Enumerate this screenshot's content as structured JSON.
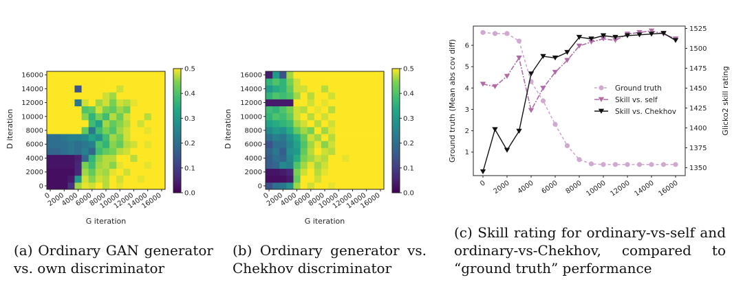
{
  "chart_data": [
    {
      "type": "heatmap",
      "xlabel": "G iteration",
      "ylabel": "D iteration",
      "x_ticks": [
        "0",
        "2000",
        "4000",
        "6000",
        "8000",
        "10000",
        "12000",
        "14000",
        "16000"
      ],
      "y_ticks": [
        "0",
        "2000",
        "4000",
        "6000",
        "8000",
        "10000",
        "12000",
        "14000",
        "16000"
      ],
      "colorbar_ticks": [
        "0.0",
        "0.1",
        "0.2",
        "0.3",
        "0.4",
        "0.5"
      ],
      "vmin": 0.0,
      "vmax": 0.5,
      "colormap": "viridis",
      "grid_step": 1000,
      "rows": [
        [
          0.02,
          0.02,
          0.02,
          0.08,
          0.46,
          0.49,
          0.48,
          0.5,
          0.47,
          0.5,
          0.49,
          0.5,
          0.5,
          0.5,
          0.5,
          0.5,
          0.5
        ],
        [
          0.02,
          0.02,
          0.02,
          0.04,
          0.3,
          0.48,
          0.45,
          0.48,
          0.47,
          0.5,
          0.48,
          0.5,
          0.5,
          0.49,
          0.5,
          0.5,
          0.5
        ],
        [
          0.02,
          0.02,
          0.02,
          0.02,
          0.06,
          0.46,
          0.42,
          0.47,
          0.46,
          0.49,
          0.5,
          0.48,
          0.5,
          0.5,
          0.5,
          0.5,
          0.5
        ],
        [
          0.03,
          0.03,
          0.03,
          0.03,
          0.06,
          0.44,
          0.38,
          0.46,
          0.47,
          0.45,
          0.49,
          0.5,
          0.5,
          0.5,
          0.49,
          0.5,
          0.5
        ],
        [
          0.03,
          0.03,
          0.03,
          0.03,
          0.05,
          0.18,
          0.36,
          0.45,
          0.47,
          0.47,
          0.5,
          0.5,
          0.47,
          0.5,
          0.5,
          0.5,
          0.5
        ],
        [
          0.18,
          0.18,
          0.2,
          0.22,
          0.2,
          0.24,
          0.18,
          0.38,
          0.42,
          0.44,
          0.47,
          0.48,
          0.5,
          0.5,
          0.5,
          0.5,
          0.5
        ],
        [
          0.2,
          0.2,
          0.2,
          0.22,
          0.2,
          0.22,
          0.24,
          0.4,
          0.36,
          0.45,
          0.42,
          0.47,
          0.48,
          0.5,
          0.49,
          0.5,
          0.5
        ],
        [
          0.2,
          0.2,
          0.22,
          0.24,
          0.24,
          0.26,
          0.32,
          0.28,
          0.38,
          0.46,
          0.44,
          0.48,
          0.5,
          0.5,
          0.5,
          0.5,
          0.5
        ],
        [
          0.5,
          0.5,
          0.5,
          0.5,
          0.5,
          0.42,
          0.22,
          0.38,
          0.44,
          0.4,
          0.46,
          0.48,
          0.5,
          0.5,
          0.49,
          0.5,
          0.5
        ],
        [
          0.5,
          0.5,
          0.5,
          0.5,
          0.5,
          0.5,
          0.38,
          0.32,
          0.46,
          0.42,
          0.45,
          0.47,
          0.5,
          0.48,
          0.5,
          0.5,
          0.5
        ],
        [
          0.5,
          0.5,
          0.5,
          0.5,
          0.5,
          0.45,
          0.36,
          0.44,
          0.38,
          0.47,
          0.43,
          0.48,
          0.5,
          0.5,
          0.47,
          0.5,
          0.5
        ],
        [
          0.5,
          0.5,
          0.5,
          0.5,
          0.5,
          0.4,
          0.42,
          0.48,
          0.44,
          0.42,
          0.46,
          0.44,
          0.5,
          0.5,
          0.5,
          0.5,
          0.5
        ],
        [
          0.5,
          0.5,
          0.5,
          0.5,
          0.22,
          0.48,
          0.5,
          0.46,
          0.48,
          0.44,
          0.48,
          0.47,
          0.49,
          0.5,
          0.5,
          0.5,
          0.5
        ],
        [
          0.5,
          0.5,
          0.5,
          0.5,
          0.5,
          0.5,
          0.5,
          0.5,
          0.48,
          0.46,
          0.5,
          0.5,
          0.5,
          0.5,
          0.5,
          0.5,
          0.5
        ],
        [
          0.5,
          0.5,
          0.5,
          0.5,
          0.14,
          0.5,
          0.5,
          0.5,
          0.5,
          0.5,
          0.48,
          0.5,
          0.5,
          0.5,
          0.5,
          0.5,
          0.5
        ],
        [
          0.5,
          0.5,
          0.5,
          0.5,
          0.5,
          0.5,
          0.5,
          0.5,
          0.5,
          0.5,
          0.5,
          0.5,
          0.5,
          0.5,
          0.5,
          0.5,
          0.5
        ],
        [
          0.5,
          0.5,
          0.5,
          0.5,
          0.5,
          0.5,
          0.5,
          0.5,
          0.5,
          0.5,
          0.5,
          0.5,
          0.5,
          0.5,
          0.5,
          0.5,
          0.5
        ]
      ],
      "caption": "(a) Ordinary GAN generator vs. own discriminator"
    },
    {
      "type": "heatmap",
      "xlabel": "G iteration",
      "ylabel": "D iteration",
      "x_ticks": [
        "0",
        "2000",
        "4000",
        "6000",
        "8000",
        "10000",
        "12000",
        "14000",
        "16000"
      ],
      "y_ticks": [
        "0",
        "2000",
        "4000",
        "6000",
        "8000",
        "10000",
        "12000",
        "14000",
        "16000"
      ],
      "colorbar_ticks": [
        "0.0",
        "0.1",
        "0.2",
        "0.3",
        "0.4",
        "0.5"
      ],
      "vmin": 0.0,
      "vmax": 0.5,
      "colormap": "viridis",
      "grid_step": 1000,
      "rows": [
        [
          0.14,
          0.2,
          0.22,
          0.28,
          0.46,
          0.5,
          0.48,
          0.5,
          0.5,
          0.49,
          0.5,
          0.5,
          0.5,
          0.5,
          0.5,
          0.5,
          0.5
        ],
        [
          0.02,
          0.02,
          0.02,
          0.04,
          0.42,
          0.5,
          0.5,
          0.48,
          0.5,
          0.5,
          0.5,
          0.5,
          0.5,
          0.5,
          0.5,
          0.5,
          0.5
        ],
        [
          0.03,
          0.03,
          0.04,
          0.06,
          0.44,
          0.48,
          0.5,
          0.47,
          0.49,
          0.5,
          0.5,
          0.5,
          0.5,
          0.5,
          0.5,
          0.5,
          0.5
        ],
        [
          0.16,
          0.18,
          0.26,
          0.24,
          0.4,
          0.46,
          0.49,
          0.46,
          0.48,
          0.5,
          0.5,
          0.5,
          0.5,
          0.5,
          0.5,
          0.5,
          0.5
        ],
        [
          0.16,
          0.2,
          0.18,
          0.26,
          0.34,
          0.44,
          0.46,
          0.48,
          0.47,
          0.5,
          0.5,
          0.49,
          0.5,
          0.5,
          0.5,
          0.5,
          0.5
        ],
        [
          0.18,
          0.22,
          0.16,
          0.28,
          0.3,
          0.42,
          0.47,
          0.5,
          0.48,
          0.47,
          0.5,
          0.5,
          0.5,
          0.5,
          0.5,
          0.5,
          0.5
        ],
        [
          0.14,
          0.2,
          0.2,
          0.26,
          0.32,
          0.4,
          0.46,
          0.49,
          0.45,
          0.48,
          0.5,
          0.5,
          0.5,
          0.5,
          0.5,
          0.5,
          0.5
        ],
        [
          0.2,
          0.24,
          0.22,
          0.28,
          0.34,
          0.42,
          0.48,
          0.46,
          0.5,
          0.47,
          0.5,
          0.5,
          0.5,
          0.5,
          0.5,
          0.5,
          0.5
        ],
        [
          0.26,
          0.3,
          0.28,
          0.34,
          0.42,
          0.46,
          0.44,
          0.5,
          0.46,
          0.49,
          0.5,
          0.5,
          0.5,
          0.5,
          0.5,
          0.5,
          0.5
        ],
        [
          0.32,
          0.34,
          0.36,
          0.38,
          0.46,
          0.48,
          0.5,
          0.47,
          0.5,
          0.48,
          0.5,
          0.5,
          0.5,
          0.5,
          0.5,
          0.5,
          0.5
        ],
        [
          0.36,
          0.4,
          0.38,
          0.42,
          0.48,
          0.5,
          0.47,
          0.5,
          0.48,
          0.5,
          0.5,
          0.5,
          0.5,
          0.5,
          0.5,
          0.5,
          0.5
        ],
        [
          0.38,
          0.36,
          0.4,
          0.44,
          0.48,
          0.47,
          0.5,
          0.49,
          0.5,
          0.47,
          0.5,
          0.5,
          0.5,
          0.5,
          0.5,
          0.5,
          0.5
        ],
        [
          0.04,
          0.04,
          0.04,
          0.04,
          0.5,
          0.5,
          0.48,
          0.5,
          0.49,
          0.5,
          0.5,
          0.5,
          0.5,
          0.5,
          0.5,
          0.5,
          0.5
        ],
        [
          0.36,
          0.4,
          0.38,
          0.4,
          0.46,
          0.5,
          0.47,
          0.5,
          0.5,
          0.48,
          0.5,
          0.5,
          0.5,
          0.5,
          0.5,
          0.5,
          0.5
        ],
        [
          0.3,
          0.34,
          0.36,
          0.42,
          0.48,
          0.48,
          0.5,
          0.5,
          0.47,
          0.5,
          0.5,
          0.5,
          0.5,
          0.5,
          0.5,
          0.5,
          0.5
        ],
        [
          0.36,
          0.4,
          0.36,
          0.44,
          0.48,
          0.5,
          0.5,
          0.5,
          0.5,
          0.5,
          0.5,
          0.5,
          0.5,
          0.5,
          0.5,
          0.5,
          0.5
        ],
        [
          0.04,
          0.3,
          0.14,
          0.46,
          0.5,
          0.5,
          0.5,
          0.5,
          0.5,
          0.5,
          0.5,
          0.5,
          0.5,
          0.5,
          0.5,
          0.5,
          0.5
        ]
      ],
      "caption": "(b) Ordinary generator vs. Chekhov discriminator"
    },
    {
      "type": "line",
      "xlabel": "",
      "ylabel": "Ground truth (Mean abs cov diff)",
      "y2label": "Glicko2 skill rating",
      "x_ticks": [
        "0",
        "2000",
        "4000",
        "6000",
        "8000",
        "10000",
        "12000",
        "14000",
        "16000"
      ],
      "y_ticks": [
        "1",
        "2",
        "3",
        "4",
        "5",
        "6"
      ],
      "y2_ticks": [
        "1350",
        "1375",
        "1400",
        "1425",
        "1450",
        "1475",
        "1500",
        "1525"
      ],
      "xlim": [
        -800,
        16800
      ],
      "ylim": [
        -0.1,
        6.9
      ],
      "y2lim": [
        1340,
        1528
      ],
      "x": [
        0,
        1000,
        2000,
        3000,
        4000,
        5000,
        6000,
        7000,
        8000,
        9000,
        10000,
        11000,
        12000,
        13000,
        14000,
        15000,
        16000
      ],
      "series": [
        {
          "name": "Ground truth",
          "axis": "left",
          "color": "#cfa9cf",
          "marker": "circle",
          "dash": "4,3",
          "values": [
            6.6,
            6.55,
            6.55,
            6.2,
            4.3,
            3.4,
            2.3,
            1.3,
            0.65,
            0.45,
            0.42,
            0.42,
            0.42,
            0.42,
            0.42,
            0.42,
            0.42
          ]
        },
        {
          "name": "Skill vs. self",
          "axis": "right",
          "color": "#b06aa6",
          "marker": "triangle-down",
          "dash": "7,2,2,2",
          "values": [
            1455,
            1452,
            1465,
            1488,
            1422,
            1450,
            1470,
            1485,
            1503,
            1508,
            1512,
            1510,
            1518,
            1520,
            1522,
            1518,
            1512
          ]
        },
        {
          "name": "Skill vs. Chekhov",
          "axis": "right",
          "color": "#111111",
          "marker": "triangle-down",
          "dash": "",
          "values": [
            1345,
            1398,
            1372,
            1396,
            1468,
            1490,
            1488,
            1495,
            1514,
            1512,
            1516,
            1514,
            1516,
            1517,
            1518,
            1519,
            1510
          ]
        }
      ],
      "legend_position": "center-right",
      "caption": "(c) Skill rating for ordinary-vs-self and ordinary-vs-Chekhov, compared to “ground truth” performance"
    }
  ]
}
